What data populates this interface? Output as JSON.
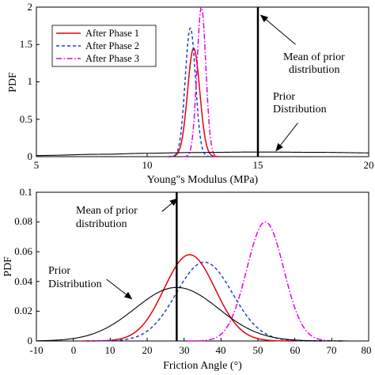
{
  "chart_data": [
    {
      "type": "line",
      "xlabel": "Young\"s Modulus (MPa)",
      "ylabel": "PDF",
      "xlim": [
        5,
        20
      ],
      "ylim": [
        0,
        2
      ],
      "xticks": [
        "5",
        "10",
        "15",
        "20"
      ],
      "yticks": [
        "0",
        "0.5",
        "1",
        "1.5",
        "2"
      ],
      "legend": {
        "placement": "top-left",
        "entries": [
          "After Phase 1",
          "After Phase 2",
          "After Phase 3"
        ]
      },
      "series": [
        {
          "name": "After Phase 1",
          "color": "#e8000b",
          "dash": "solid",
          "mean": 12.1,
          "sd": 0.275,
          "peak": 1.45
        },
        {
          "name": "After Phase 2",
          "color": "#1f3fd6",
          "dash": "dashed",
          "mean": 11.95,
          "sd": 0.232,
          "peak": 1.72
        },
        {
          "name": "After Phase 3",
          "color": "#e400e4",
          "dash": "dashdot",
          "mean": 12.45,
          "sd": 0.2,
          "peak": 2.0
        },
        {
          "role": "prior",
          "color": "#000000",
          "dash": "solid",
          "x": [
            5,
            8,
            10,
            12,
            15,
            18,
            20
          ],
          "y": [
            0.015,
            0.032,
            0.045,
            0.055,
            0.062,
            0.057,
            0.05
          ]
        }
      ],
      "vline": {
        "x": 15,
        "width": 2.5
      },
      "annotations": [
        {
          "text_lines": [
            "Mean of prior",
            "distribution"
          ],
          "arrow_to": {
            "x": 15.1,
            "y": 1.9
          },
          "arrow_from": {
            "x": 16.7,
            "y": 1.5
          }
        },
        {
          "text_lines": [
            "Prior",
            "Distribution"
          ],
          "arrow_to": {
            "x": 15.8,
            "y": 0.07
          },
          "arrow_from": {
            "x": 16.8,
            "y": 0.45
          }
        }
      ]
    },
    {
      "type": "line",
      "xlabel": "Friction Angle (°)",
      "ylabel": "PDF",
      "xlim": [
        -10,
        80
      ],
      "ylim": [
        0,
        0.1
      ],
      "xticks": [
        "-10",
        "0",
        "10",
        "20",
        "30",
        "40",
        "50",
        "60",
        "70",
        "80"
      ],
      "yticks": [
        "0",
        "0.02",
        "0.04",
        "0.06",
        "0.08",
        "0.1"
      ],
      "series": [
        {
          "name": "After Phase 1",
          "color": "#e8000b",
          "dash": "solid",
          "mean": 31.5,
          "sd": 6.9,
          "peak": 0.058
        },
        {
          "name": "After Phase 2",
          "color": "#1f3fd6",
          "dash": "dashed",
          "mean": 35.5,
          "sd": 7.6,
          "peak": 0.053
        },
        {
          "name": "After Phase 3",
          "color": "#e400e4",
          "dash": "dashdot",
          "mean": 52,
          "sd": 5.0,
          "peak": 0.08
        },
        {
          "role": "prior",
          "color": "#000000",
          "dash": "solid",
          "mean": 28,
          "sd": 11.3,
          "peak": 0.036
        }
      ],
      "vline": {
        "x": 28,
        "width": 2.5
      },
      "annotations": [
        {
          "text_lines": [
            "Mean of prior",
            "distribution"
          ],
          "arrow_to": {
            "x": 28.3,
            "y": 0.096
          },
          "arrow_from": {
            "x": 24,
            "y": 0.087
          }
        },
        {
          "text_lines": [
            "Prior",
            "Distribution"
          ],
          "arrow_to": {
            "x": 16,
            "y": 0.028
          },
          "arrow_from": {
            "x": 9,
            "y": 0.0415
          }
        }
      ]
    }
  ]
}
